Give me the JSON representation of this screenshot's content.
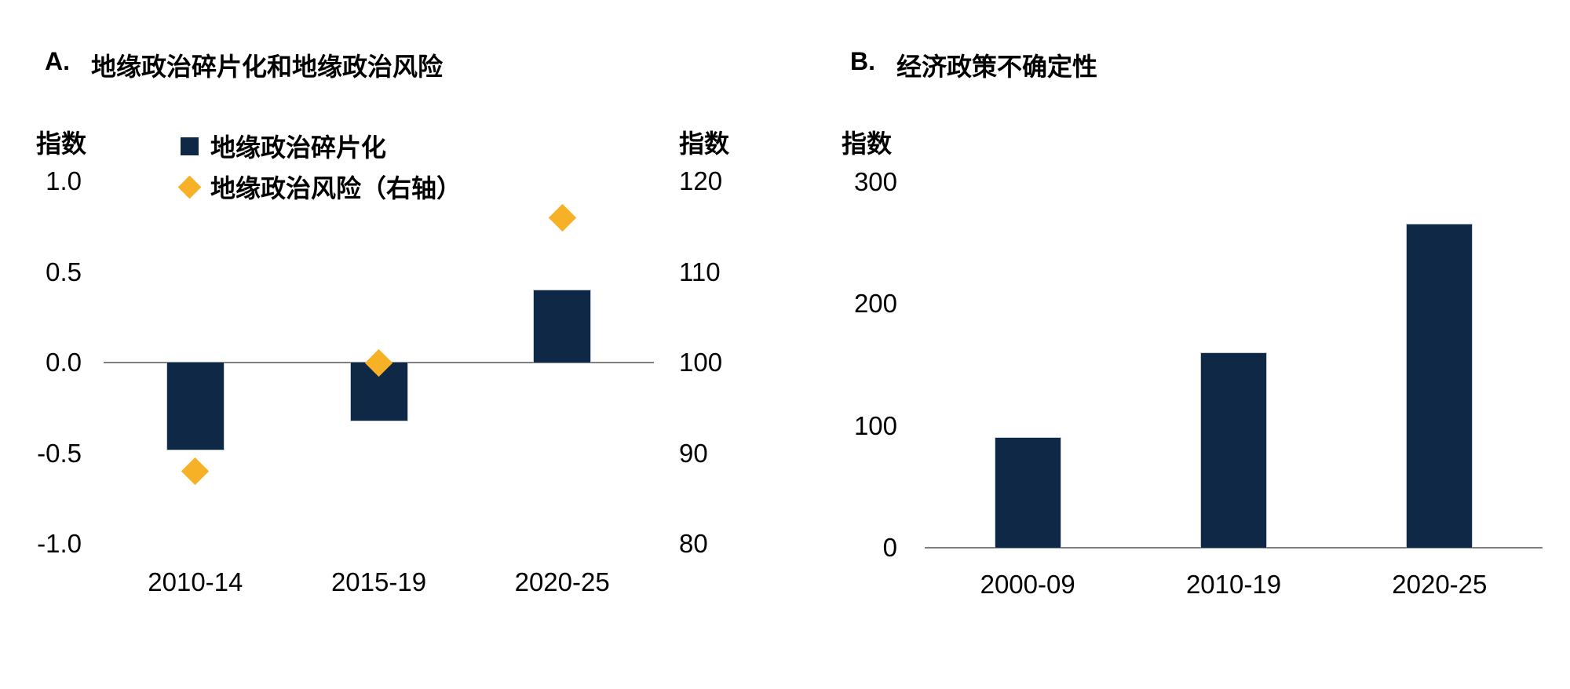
{
  "colors": {
    "bar_navy": "#0E2845",
    "diamond_amber": "#F7B127",
    "axis_line_gray": "#7F7F7F",
    "text_black": "#000000",
    "background": "#FFFFFF"
  },
  "chart_data": [
    {
      "id": "A",
      "type": "bar+scatter",
      "title_prefix": "A.",
      "title": "地缘政治碎片化和地缘政治风险",
      "categories": [
        "2010-14",
        "2015-19",
        "2020-25"
      ],
      "series": [
        {
          "name": "地缘政治碎片化",
          "type": "bar",
          "axis": "left",
          "values": [
            -0.48,
            -0.32,
            0.4
          ]
        },
        {
          "name": "地缘政治风险（右轴）",
          "type": "scatter",
          "marker": "diamond",
          "axis": "right",
          "values": [
            88,
            100,
            116
          ]
        }
      ],
      "left_axis": {
        "label": "指数",
        "ticks": [
          1.0,
          0.5,
          0.0,
          -0.5,
          -1.0
        ],
        "range": [
          -1.0,
          1.0
        ],
        "tick_decimals": 1
      },
      "right_axis": {
        "label": "指数",
        "ticks": [
          120,
          110,
          100,
          90,
          80
        ],
        "range": [
          80,
          120
        ],
        "tick_decimals": 0
      },
      "legend_position": "top",
      "grid": false
    },
    {
      "id": "B",
      "type": "bar",
      "title_prefix": "B.",
      "title": "经济政策不确定性",
      "categories": [
        "2000-09",
        "2010-19",
        "2020-25"
      ],
      "series": [
        {
          "name": "经济政策不确定性",
          "type": "bar",
          "axis": "left",
          "values": [
            90,
            160,
            265
          ]
        }
      ],
      "left_axis": {
        "label": "指数",
        "ticks": [
          300,
          200,
          100,
          0
        ],
        "range": [
          0,
          300
        ],
        "tick_decimals": 0
      },
      "legend_position": "none",
      "grid": false
    }
  ]
}
